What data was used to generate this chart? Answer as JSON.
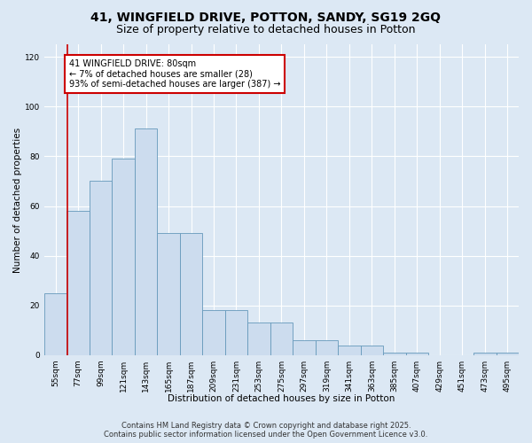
{
  "title_line1": "41, WINGFIELD DRIVE, POTTON, SANDY, SG19 2GQ",
  "title_line2": "Size of property relative to detached houses in Potton",
  "xlabel": "Distribution of detached houses by size in Potton",
  "ylabel": "Number of detached properties",
  "categories": [
    "55sqm",
    "77sqm",
    "99sqm",
    "121sqm",
    "143sqm",
    "165sqm",
    "187sqm",
    "209sqm",
    "231sqm",
    "253sqm",
    "275sqm",
    "297sqm",
    "319sqm",
    "341sqm",
    "363sqm",
    "385sqm",
    "407sqm",
    "429sqm",
    "451sqm",
    "473sqm",
    "495sqm"
  ],
  "bar_values": [
    25,
    58,
    70,
    79,
    91,
    49,
    49,
    18,
    18,
    13,
    13,
    6,
    6,
    4,
    4,
    1,
    1,
    0,
    0,
    1,
    1
  ],
  "bar_color": "#ccdcee",
  "bar_edge_color": "#6699bb",
  "red_line_x": 0.525,
  "highlight_color": "#cc0000",
  "ylim_max": 125,
  "yticks": [
    0,
    20,
    40,
    60,
    80,
    100,
    120
  ],
  "annotation_text": "41 WINGFIELD DRIVE: 80sqm\n← 7% of detached houses are smaller (28)\n93% of semi-detached houses are larger (387) →",
  "annotation_box_facecolor": "#ffffff",
  "annotation_box_edgecolor": "#cc0000",
  "footer_text": "Contains HM Land Registry data © Crown copyright and database right 2025.\nContains public sector information licensed under the Open Government Licence v3.0.",
  "background_color": "#dce8f4",
  "grid_color": "#ffffff",
  "title_fontsize": 10,
  "subtitle_fontsize": 9,
  "axis_label_fontsize": 7.5,
  "tick_fontsize": 6.5,
  "annotation_fontsize": 7,
  "footer_fontsize": 6
}
